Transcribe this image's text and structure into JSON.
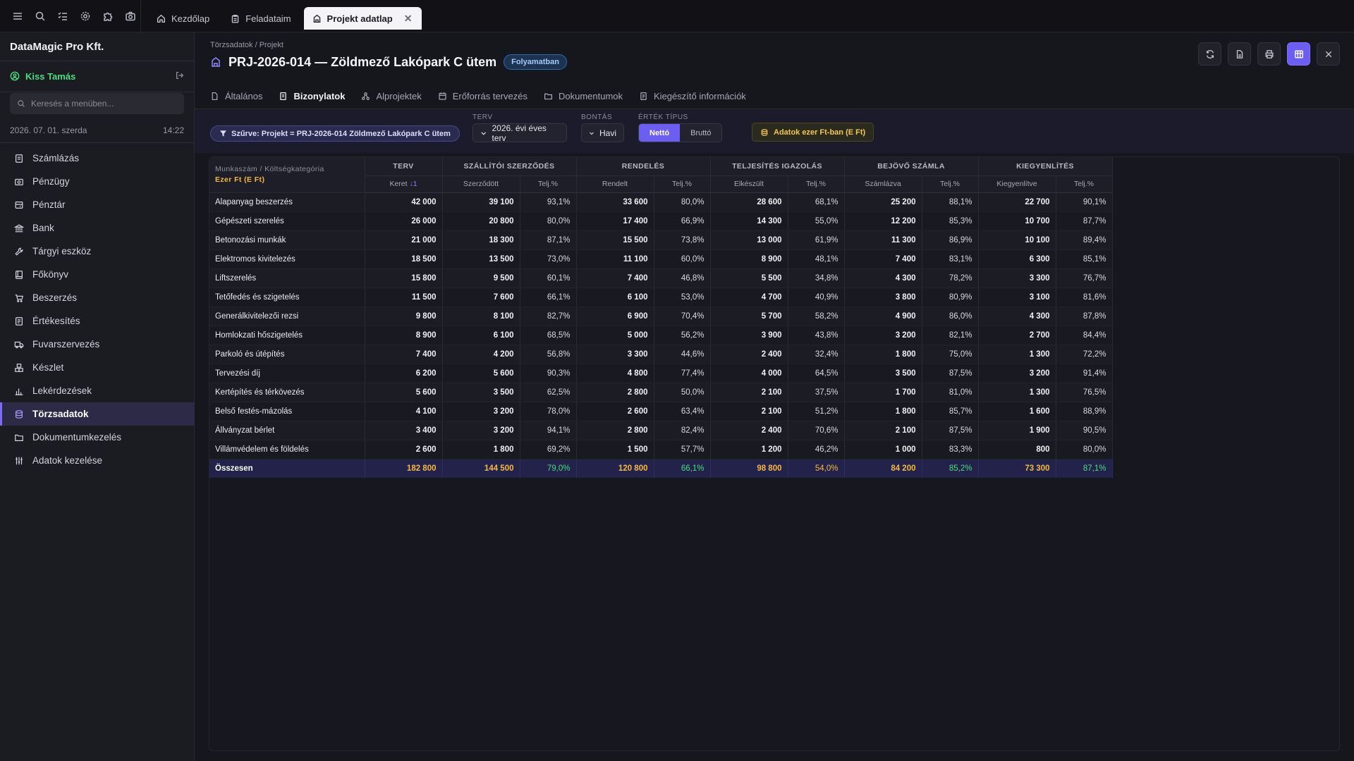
{
  "top_tabs": [
    {
      "label": "Kezdőlap",
      "icon": "home-icon",
      "active": false
    },
    {
      "label": "Feladataim",
      "icon": "clipboard-icon",
      "active": false
    },
    {
      "label": "Projekt adatlap",
      "icon": "building-icon",
      "active": true
    }
  ],
  "sidebar": {
    "company": "DataMagic Pro Kft.",
    "user": "Kiss Tamás",
    "search_placeholder": "Keresés a menüben...",
    "date": "2026. 07. 01. szerda",
    "time": "14:22",
    "items": [
      {
        "label": "Számlázás",
        "icon": "invoice-icon"
      },
      {
        "label": "Pénzügy",
        "icon": "finance-icon"
      },
      {
        "label": "Pénztár",
        "icon": "cashbox-icon"
      },
      {
        "label": "Bank",
        "icon": "bank-icon"
      },
      {
        "label": "Tárgyi eszköz",
        "icon": "wrench-icon"
      },
      {
        "label": "Főkönyv",
        "icon": "ledger-icon"
      },
      {
        "label": "Beszerzés",
        "icon": "cart-icon"
      },
      {
        "label": "Értékesítés",
        "icon": "sales-icon"
      },
      {
        "label": "Fuvarszervezés",
        "icon": "truck-icon"
      },
      {
        "label": "Készlet",
        "icon": "boxes-icon"
      },
      {
        "label": "Lekérdezések",
        "icon": "barchart-icon"
      },
      {
        "label": "Törzsadatok",
        "icon": "database-icon",
        "active": true
      },
      {
        "label": "Dokumentumkezelés",
        "icon": "folder-icon"
      },
      {
        "label": "Adatok kezelése",
        "icon": "sliders-icon"
      }
    ]
  },
  "header": {
    "breadcrumb": "Törzsadatok / Projekt",
    "title": "PRJ-2026-014 — Zöldmező Lakópark C ütem",
    "status": "Folyamatban"
  },
  "subtabs": [
    {
      "label": "Általános",
      "icon": "doc-icon",
      "active": false
    },
    {
      "label": "Bizonylatok",
      "icon": "receipt-icon",
      "active": true
    },
    {
      "label": "Alprojektek",
      "icon": "subprojects-icon",
      "active": false
    },
    {
      "label": "Erőforrás tervezés",
      "icon": "resource-icon",
      "active": false
    },
    {
      "label": "Dokumentumok",
      "icon": "folder-icon",
      "active": false
    },
    {
      "label": "Kiegészítő információk",
      "icon": "info-doc-icon",
      "active": false
    }
  ],
  "filters": {
    "chip": "Szűrve: Projekt = PRJ-2026-014 Zöldmező Lakópark C ütem",
    "terv_label": "TERV",
    "terv_value": "2026. évi éves terv",
    "bontas_label": "BONTÁS",
    "bontas_value": "Havi",
    "ertek_label": "ÉRTÉK TÍPUS",
    "ertek_options": [
      "Nettó",
      "Bruttó"
    ],
    "ertek_selected": "Nettó",
    "unit_button": "Adatok ezer Ft-ban (E Ft)"
  },
  "table": {
    "corner_label": "Munkaszám / Költségkategória",
    "corner_unit": "Ezer Ft (E Ft)",
    "groups": [
      "TERV",
      "SZÁLLÍTÓI SZERZŐDÉS",
      "RENDELÉS",
      "TELJESÍTÉS IGAZOLÁS",
      "BEJÖVŐ SZÁMLA",
      "KIEGYENLÍTÉS"
    ],
    "sub_headers": [
      "Keret",
      "Szerződött",
      "Telj.%",
      "Rendelt",
      "Telj.%",
      "Elkészült",
      "Telj.%",
      "Számlázva",
      "Telj.%",
      "Kiegyenlítve",
      "Telj.%"
    ],
    "sort_indicator": "↓1",
    "rows": [
      {
        "name": "Alapanyag beszerzés",
        "cells": [
          "42 000",
          "39 100",
          "93,1%",
          "33 600",
          "80,0%",
          "28 600",
          "68,1%",
          "25 200",
          "88,1%",
          "22 700",
          "90,1%"
        ]
      },
      {
        "name": "Gépészeti szerelés",
        "cells": [
          "26 000",
          "20 800",
          "80,0%",
          "17 400",
          "66,9%",
          "14 300",
          "55,0%",
          "12 200",
          "85,3%",
          "10 700",
          "87,7%"
        ]
      },
      {
        "name": "Betonozási munkák",
        "cells": [
          "21 000",
          "18 300",
          "87,1%",
          "15 500",
          "73,8%",
          "13 000",
          "61,9%",
          "11 300",
          "86,9%",
          "10 100",
          "89,4%"
        ]
      },
      {
        "name": "Elektromos kivitelezés",
        "cells": [
          "18 500",
          "13 500",
          "73,0%",
          "11 100",
          "60,0%",
          "8 900",
          "48,1%",
          "7 400",
          "83,1%",
          "6 300",
          "85,1%"
        ]
      },
      {
        "name": "Liftszerelés",
        "cells": [
          "15 800",
          "9 500",
          "60,1%",
          "7 400",
          "46,8%",
          "5 500",
          "34,8%",
          "4 300",
          "78,2%",
          "3 300",
          "76,7%"
        ]
      },
      {
        "name": "Tetőfedés és szigetelés",
        "cells": [
          "11 500",
          "7 600",
          "66,1%",
          "6 100",
          "53,0%",
          "4 700",
          "40,9%",
          "3 800",
          "80,9%",
          "3 100",
          "81,6%"
        ]
      },
      {
        "name": "Generálkivitelezői rezsi",
        "cells": [
          "9 800",
          "8 100",
          "82,7%",
          "6 900",
          "70,4%",
          "5 700",
          "58,2%",
          "4 900",
          "86,0%",
          "4 300",
          "87,8%"
        ]
      },
      {
        "name": "Homlokzati hőszigetelés",
        "cells": [
          "8 900",
          "6 100",
          "68,5%",
          "5 000",
          "56,2%",
          "3 900",
          "43,8%",
          "3 200",
          "82,1%",
          "2 700",
          "84,4%"
        ]
      },
      {
        "name": "Parkoló és útépítés",
        "cells": [
          "7 400",
          "4 200",
          "56,8%",
          "3 300",
          "44,6%",
          "2 400",
          "32,4%",
          "1 800",
          "75,0%",
          "1 300",
          "72,2%"
        ]
      },
      {
        "name": "Tervezési díj",
        "cells": [
          "6 200",
          "5 600",
          "90,3%",
          "4 800",
          "77,4%",
          "4 000",
          "64,5%",
          "3 500",
          "87,5%",
          "3 200",
          "91,4%"
        ]
      },
      {
        "name": "Kertépítés és térkövezés",
        "cells": [
          "5 600",
          "3 500",
          "62,5%",
          "2 800",
          "50,0%",
          "2 100",
          "37,5%",
          "1 700",
          "81,0%",
          "1 300",
          "76,5%"
        ]
      },
      {
        "name": "Belső festés-mázolás",
        "cells": [
          "4 100",
          "3 200",
          "78,0%",
          "2 600",
          "63,4%",
          "2 100",
          "51,2%",
          "1 800",
          "85,7%",
          "1 600",
          "88,9%"
        ]
      },
      {
        "name": "Állványzat bérlet",
        "cells": [
          "3 400",
          "3 200",
          "94,1%",
          "2 800",
          "82,4%",
          "2 400",
          "70,6%",
          "2 100",
          "87,5%",
          "1 900",
          "90,5%"
        ]
      },
      {
        "name": "Villámvédelem és földelés",
        "cells": [
          "2 600",
          "1 800",
          "69,2%",
          "1 500",
          "57,7%",
          "1 200",
          "46,2%",
          "1 000",
          "83,3%",
          "800",
          "80,0%"
        ]
      }
    ],
    "total": {
      "name": "Összesen",
      "cells": [
        "182 800",
        "144 500",
        "79,0%",
        "120 800",
        "66,1%",
        "98 800",
        "54,0%",
        "84 200",
        "85,2%",
        "73 300",
        "87,1%"
      ]
    },
    "total_pct_colors": [
      "green",
      "green",
      "amber",
      "green",
      "green"
    ],
    "colors": {
      "accent": "#6d5ef2",
      "green": "#4ade80",
      "amber": "#f5b843"
    }
  }
}
